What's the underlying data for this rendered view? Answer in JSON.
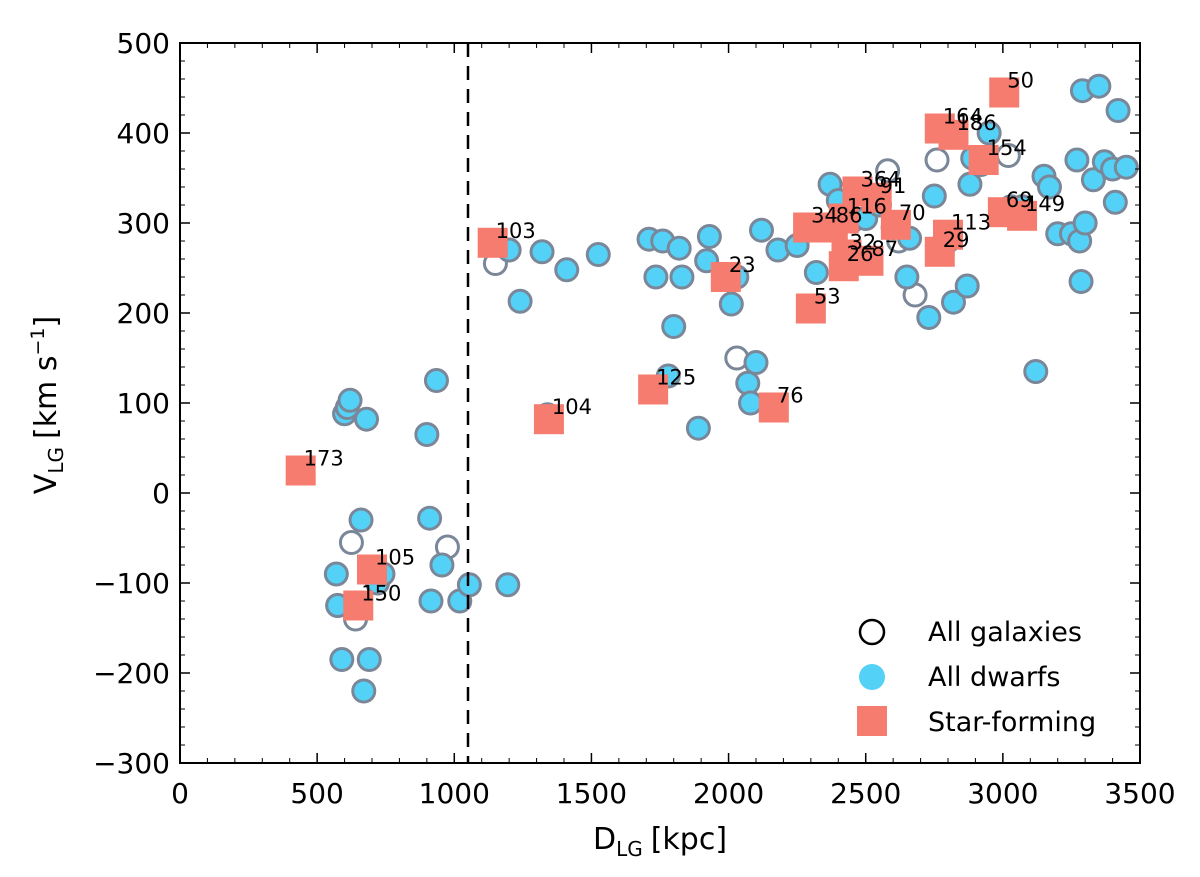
{
  "chart_data": {
    "type": "scatter",
    "xlabel": "D",
    "xlabel_subscript": "LG",
    "xlabel_unit": "[kpc]",
    "ylabel": "V",
    "ylabel_subscript": "LG",
    "ylabel_unit_pre": "[km s",
    "ylabel_unit_sup": "−1",
    "ylabel_unit_post": "]",
    "xlim": [
      0,
      3500
    ],
    "ylim": [
      -300,
      500
    ],
    "xticks": [
      0,
      500,
      1000,
      1500,
      2000,
      2500,
      3000,
      3500
    ],
    "xtick_labels": [
      "0",
      "500",
      "1000",
      "1500",
      "2000",
      "2500",
      "3000",
      "3500"
    ],
    "yticks": [
      -300,
      -200,
      -100,
      0,
      100,
      200,
      300,
      400,
      500
    ],
    "ytick_labels": [
      "−300",
      "−200",
      "−100",
      "0",
      "100",
      "200",
      "300",
      "400",
      "500"
    ],
    "grid": false,
    "vline": {
      "x": 1050,
      "style": "dashed"
    },
    "legend_position": "bottom-right",
    "colors": {
      "all_galaxies_edge": "#7a8799",
      "dwarf_fill": "#54d1f7",
      "star_forming": "#f57c6e",
      "vline": "#000000"
    },
    "legend": [
      {
        "label": "All galaxies",
        "marker": "open-circle"
      },
      {
        "label": "All dwarfs",
        "marker": "filled-circle"
      },
      {
        "label": "Star-forming",
        "marker": "square"
      }
    ],
    "series": [
      {
        "name": "All galaxies",
        "points": [
          [
            575,
            -125
          ],
          [
            640,
            -140
          ],
          [
            625,
            -55
          ],
          [
            975,
            -60
          ],
          [
            1150,
            255
          ],
          [
            2030,
            150
          ],
          [
            2580,
            358
          ],
          [
            2680,
            220
          ],
          [
            2800,
            280
          ],
          [
            2920,
            365
          ],
          [
            3020,
            375
          ],
          [
            2430,
            320
          ],
          [
            2620,
            280
          ],
          [
            2760,
            370
          ]
        ]
      },
      {
        "name": "All dwarfs",
        "points": [
          [
            570,
            -90
          ],
          [
            575,
            -125
          ],
          [
            590,
            -185
          ],
          [
            600,
            88
          ],
          [
            610,
            95
          ],
          [
            620,
            103
          ],
          [
            660,
            -30
          ],
          [
            670,
            -220
          ],
          [
            680,
            82
          ],
          [
            690,
            -185
          ],
          [
            720,
            -100
          ],
          [
            740,
            -90
          ],
          [
            900,
            65
          ],
          [
            910,
            -28
          ],
          [
            915,
            -120
          ],
          [
            935,
            125
          ],
          [
            955,
            -80
          ],
          [
            1020,
            -120
          ],
          [
            1055,
            -102
          ],
          [
            1195,
            -102
          ],
          [
            1200,
            270
          ],
          [
            1240,
            213
          ],
          [
            1340,
            87
          ],
          [
            1320,
            268
          ],
          [
            1410,
            248
          ],
          [
            1525,
            265
          ],
          [
            1710,
            282
          ],
          [
            1735,
            240
          ],
          [
            1760,
            280
          ],
          [
            1780,
            130
          ],
          [
            1800,
            185
          ],
          [
            1820,
            272
          ],
          [
            1830,
            240
          ],
          [
            1890,
            72
          ],
          [
            1920,
            258
          ],
          [
            1930,
            285
          ],
          [
            2010,
            210
          ],
          [
            2030,
            240
          ],
          [
            2070,
            122
          ],
          [
            2080,
            100
          ],
          [
            2100,
            145
          ],
          [
            2120,
            292
          ],
          [
            2180,
            270
          ],
          [
            2250,
            275
          ],
          [
            2320,
            245
          ],
          [
            2370,
            343
          ],
          [
            2400,
            325
          ],
          [
            2450,
            302
          ],
          [
            2500,
            305
          ],
          [
            2550,
            320
          ],
          [
            2600,
            295
          ],
          [
            2650,
            240
          ],
          [
            2660,
            283
          ],
          [
            2730,
            195
          ],
          [
            2750,
            330
          ],
          [
            2820,
            212
          ],
          [
            2870,
            230
          ],
          [
            2880,
            343
          ],
          [
            2890,
            372
          ],
          [
            2950,
            400
          ],
          [
            3030,
            318
          ],
          [
            3070,
            318
          ],
          [
            3120,
            135
          ],
          [
            3150,
            352
          ],
          [
            3170,
            340
          ],
          [
            3200,
            288
          ],
          [
            3250,
            288
          ],
          [
            3270,
            370
          ],
          [
            3280,
            280
          ],
          [
            3285,
            235
          ],
          [
            3290,
            447
          ],
          [
            3300,
            300
          ],
          [
            3330,
            348
          ],
          [
            3350,
            452
          ],
          [
            3370,
            368
          ],
          [
            3400,
            360
          ],
          [
            3410,
            323
          ],
          [
            3420,
            425
          ],
          [
            3450,
            362
          ]
        ]
      },
      {
        "name": "Star-forming",
        "points": [
          {
            "x": 440,
            "y": 25,
            "label": "173"
          },
          {
            "x": 700,
            "y": -85,
            "label": "105"
          },
          {
            "x": 650,
            "y": -125,
            "label": "150"
          },
          {
            "x": 1140,
            "y": 278,
            "label": "103"
          },
          {
            "x": 1345,
            "y": 82,
            "label": "104"
          },
          {
            "x": 1725,
            "y": 115,
            "label": "125"
          },
          {
            "x": 1990,
            "y": 240,
            "label": "23"
          },
          {
            "x": 2165,
            "y": 95,
            "label": "76"
          },
          {
            "x": 2300,
            "y": 205,
            "label": "53"
          },
          {
            "x": 2290,
            "y": 295,
            "label": "34"
          },
          {
            "x": 2380,
            "y": 295,
            "label": "86"
          },
          {
            "x": 2420,
            "y": 305,
            "label": "116"
          },
          {
            "x": 2470,
            "y": 335,
            "label": "364"
          },
          {
            "x": 2540,
            "y": 328,
            "label": "91"
          },
          {
            "x": 2430,
            "y": 265,
            "label": "32"
          },
          {
            "x": 2420,
            "y": 252,
            "label": "26"
          },
          {
            "x": 2510,
            "y": 258,
            "label": "87"
          },
          {
            "x": 2610,
            "y": 298,
            "label": "70"
          },
          {
            "x": 2770,
            "y": 405,
            "label": "164"
          },
          {
            "x": 2820,
            "y": 398,
            "label": "186"
          },
          {
            "x": 2930,
            "y": 370,
            "label": "154"
          },
          {
            "x": 2800,
            "y": 287,
            "label": "113"
          },
          {
            "x": 2770,
            "y": 268,
            "label": "29"
          },
          {
            "x": 3000,
            "y": 312,
            "label": "69"
          },
          {
            "x": 3070,
            "y": 308,
            "label": "149"
          },
          {
            "x": 3005,
            "y": 445,
            "label": "50"
          }
        ]
      }
    ]
  }
}
